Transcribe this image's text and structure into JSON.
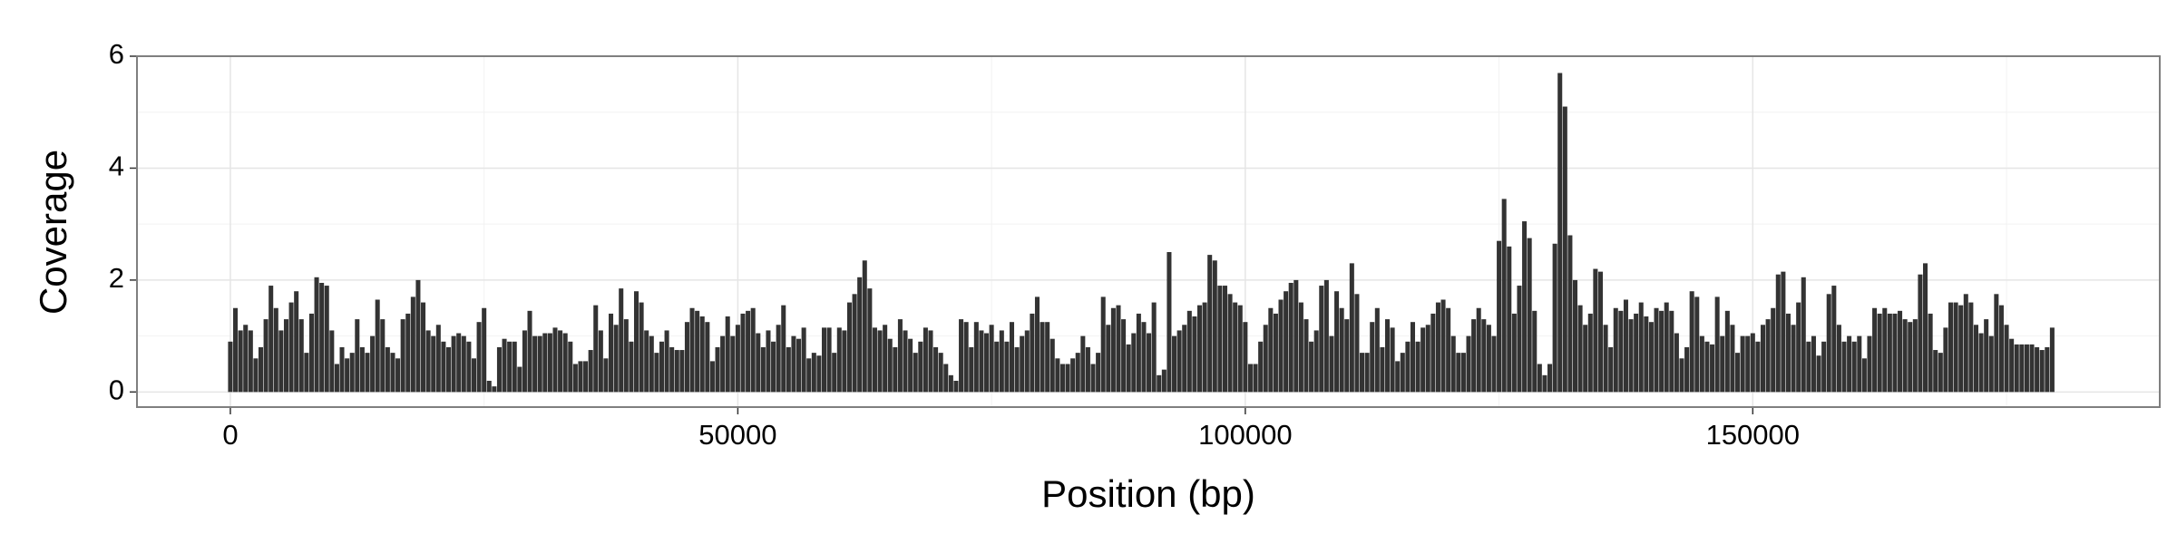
{
  "chart_data": {
    "type": "bar",
    "xlabel": "Position (bp)",
    "ylabel": "Coverage",
    "color": "#333333",
    "grid": true,
    "xlim": [
      -9200,
      190100
    ],
    "ylim": [
      -0.27,
      6.0
    ],
    "xticks": [
      0,
      50000,
      100000,
      150000
    ],
    "yticks": [
      0,
      2,
      4,
      6
    ],
    "x_minor_ticks": [
      25000,
      75000,
      125000,
      175000
    ],
    "y_minor_ticks": [
      1,
      3,
      5
    ],
    "x": [
      0,
      500,
      1000,
      1500,
      2000,
      2500,
      3000,
      3500,
      4000,
      4500,
      5000,
      5500,
      6000,
      6500,
      7000,
      7500,
      8000,
      8500,
      9000,
      9500,
      10000,
      10500,
      11000,
      11500,
      12000,
      12500,
      13000,
      13500,
      14000,
      14500,
      15000,
      15500,
      16000,
      16500,
      17000,
      17500,
      18000,
      18500,
      19000,
      19500,
      20000,
      20500,
      21000,
      21500,
      22000,
      22500,
      23000,
      23500,
      24000,
      24500,
      25000,
      25500,
      26000,
      26500,
      27000,
      27500,
      28000,
      28500,
      29000,
      29500,
      30000,
      30500,
      31000,
      31500,
      32000,
      32500,
      33000,
      33500,
      34000,
      34500,
      35000,
      35500,
      36000,
      36500,
      37000,
      37500,
      38000,
      38500,
      39000,
      39500,
      40000,
      40500,
      41000,
      41500,
      42000,
      42500,
      43000,
      43500,
      44000,
      44500,
      45000,
      45500,
      46000,
      46500,
      47000,
      47500,
      48000,
      48500,
      49000,
      49500,
      50000,
      50500,
      51000,
      51500,
      52000,
      52500,
      53000,
      53500,
      54000,
      54500,
      55000,
      55500,
      56000,
      56500,
      57000,
      57500,
      58000,
      58500,
      59000,
      59500,
      60000,
      60500,
      61000,
      61500,
      62000,
      62500,
      63000,
      63500,
      64000,
      64500,
      65000,
      65500,
      66000,
      66500,
      67000,
      67500,
      68000,
      68500,
      69000,
      69500,
      70000,
      70500,
      71000,
      71500,
      72000,
      72500,
      73000,
      73500,
      74000,
      74500,
      75000,
      75500,
      76000,
      76500,
      77000,
      77500,
      78000,
      78500,
      79000,
      79500,
      80000,
      80500,
      81000,
      81500,
      82000,
      82500,
      83000,
      83500,
      84000,
      84500,
      85000,
      85500,
      86000,
      86500,
      87000,
      87500,
      88000,
      88500,
      89000,
      89500,
      90000,
      90500,
      91000,
      91500,
      92000,
      92500,
      93000,
      93500,
      94000,
      94500,
      95000,
      95500,
      96000,
      96500,
      97000,
      97500,
      98000,
      98500,
      99000,
      99500,
      100000,
      100500,
      101000,
      101500,
      102000,
      102500,
      103000,
      103500,
      104000,
      104500,
      105000,
      105500,
      106000,
      106500,
      107000,
      107500,
      108000,
      108500,
      109000,
      109500,
      110000,
      110500,
      111000,
      111500,
      112000,
      112500,
      113000,
      113500,
      114000,
      114500,
      115000,
      115500,
      116000,
      116500,
      117000,
      117500,
      118000,
      118500,
      119000,
      119500,
      120000,
      120500,
      121000,
      121500,
      122000,
      122500,
      123000,
      123500,
      124000,
      124500,
      125000,
      125500,
      126000,
      126500,
      127000,
      127500,
      128000,
      128500,
      129000,
      129500,
      130000,
      130500,
      131000,
      131500,
      132000,
      132500,
      133000,
      133500,
      134000,
      134500,
      135000,
      135500,
      136000,
      136500,
      137000,
      137500,
      138000,
      138500,
      139000,
      139500,
      140000,
      140500,
      141000,
      141500,
      142000,
      142500,
      143000,
      143500,
      144000,
      144500,
      145000,
      145500,
      146000,
      146500,
      147000,
      147500,
      148000,
      148500,
      149000,
      149500,
      150000,
      150500,
      151000,
      151500,
      152000,
      152500,
      153000,
      153500,
      154000,
      154500,
      155000,
      155500,
      156000,
      156500,
      157000,
      157500,
      158000,
      158500,
      159000,
      159500,
      160000,
      160500,
      161000,
      161500,
      162000,
      162500,
      163000,
      163500,
      164000,
      164500,
      165000,
      165500,
      166000,
      166500,
      167000,
      167500,
      168000,
      168500,
      169000,
      169500,
      170000,
      170500,
      171000,
      171500,
      172000,
      172500,
      173000,
      173500,
      174000,
      174500,
      175000,
      175500,
      176000,
      176500,
      177000,
      177500,
      178000,
      178500,
      179000,
      179500
    ],
    "values": [
      0.9,
      1.5,
      1.1,
      1.2,
      1.1,
      0.6,
      0.8,
      1.3,
      1.9,
      1.5,
      1.1,
      1.3,
      1.6,
      1.8,
      1.3,
      0.7,
      1.4,
      2.05,
      1.95,
      1.9,
      1.1,
      0.5,
      0.8,
      0.6,
      0.7,
      1.3,
      0.8,
      0.7,
      1.0,
      1.65,
      1.3,
      0.8,
      0.7,
      0.6,
      1.3,
      1.4,
      1.7,
      2.0,
      1.6,
      1.1,
      1.0,
      1.2,
      0.9,
      0.8,
      1.0,
      1.05,
      1.0,
      0.9,
      0.6,
      1.25,
      1.5,
      0.2,
      0.1,
      0.8,
      0.95,
      0.9,
      0.9,
      0.45,
      1.1,
      1.45,
      1.0,
      1.0,
      1.05,
      1.05,
      1.15,
      1.1,
      1.05,
      0.9,
      0.5,
      0.55,
      0.55,
      0.75,
      1.55,
      1.1,
      0.6,
      1.4,
      1.2,
      1.85,
      1.3,
      0.9,
      1.8,
      1.6,
      1.1,
      1.0,
      0.7,
      0.9,
      1.1,
      0.8,
      0.75,
      0.75,
      1.25,
      1.5,
      1.45,
      1.35,
      1.25,
      0.55,
      0.8,
      1.0,
      1.35,
      1.0,
      1.2,
      1.4,
      1.45,
      1.5,
      1.05,
      0.8,
      1.1,
      0.9,
      1.2,
      1.55,
      0.8,
      1.0,
      0.95,
      1.15,
      0.6,
      0.7,
      0.65,
      1.15,
      1.15,
      0.7,
      1.15,
      1.1,
      1.6,
      1.75,
      2.05,
      2.35,
      1.85,
      1.15,
      1.1,
      1.2,
      0.95,
      0.8,
      1.3,
      1.1,
      0.95,
      0.7,
      0.9,
      1.15,
      1.1,
      0.8,
      0.7,
      0.5,
      0.3,
      0.2,
      1.3,
      1.25,
      0.8,
      1.25,
      1.1,
      1.05,
      1.2,
      0.9,
      1.1,
      0.9,
      1.25,
      0.8,
      1.0,
      1.1,
      1.4,
      1.7,
      1.25,
      1.25,
      0.95,
      0.6,
      0.5,
      0.5,
      0.6,
      0.7,
      1.0,
      0.8,
      0.5,
      0.7,
      1.7,
      1.2,
      1.5,
      1.55,
      1.3,
      0.85,
      1.05,
      1.4,
      1.25,
      1.05,
      1.6,
      0.3,
      0.4,
      2.5,
      1.0,
      1.1,
      1.2,
      1.45,
      1.35,
      1.55,
      1.6,
      2.45,
      2.35,
      1.9,
      1.9,
      1.75,
      1.6,
      1.55,
      1.25,
      0.5,
      0.5,
      0.9,
      1.2,
      1.5,
      1.4,
      1.65,
      1.8,
      1.95,
      2.0,
      1.6,
      1.3,
      0.9,
      1.1,
      1.9,
      2.0,
      1.0,
      1.8,
      1.5,
      1.3,
      2.3,
      1.75,
      0.7,
      0.7,
      1.25,
      1.5,
      0.8,
      1.3,
      1.15,
      0.55,
      0.7,
      0.9,
      1.25,
      0.9,
      1.15,
      1.2,
      1.4,
      1.6,
      1.65,
      1.5,
      1.0,
      0.7,
      0.7,
      1.0,
      1.3,
      1.5,
      1.3,
      1.2,
      1.0,
      2.7,
      3.45,
      2.6,
      1.4,
      1.9,
      3.05,
      2.75,
      1.45,
      0.5,
      0.3,
      0.5,
      2.65,
      5.7,
      5.1,
      2.8,
      2.0,
      1.55,
      1.2,
      1.4,
      2.2,
      2.15,
      1.2,
      0.8,
      1.5,
      1.45,
      1.65,
      1.3,
      1.4,
      1.6,
      1.35,
      1.25,
      1.5,
      1.45,
      1.6,
      1.45,
      1.05,
      0.6,
      0.8,
      1.8,
      1.7,
      1.0,
      0.9,
      0.85,
      1.7,
      1.0,
      1.45,
      1.2,
      0.7,
      1.0,
      1.0,
      1.05,
      0.9,
      1.2,
      1.3,
      1.5,
      2.1,
      2.15,
      1.4,
      1.2,
      1.6,
      2.05,
      0.9,
      1.0,
      0.65,
      0.9,
      1.75,
      1.9,
      1.2,
      0.9,
      1.0,
      0.9,
      1.0,
      0.6,
      1.0,
      1.5,
      1.4,
      1.5,
      1.4,
      1.4,
      1.45,
      1.3,
      1.25,
      1.3,
      2.1,
      2.3,
      1.4,
      0.75,
      0.7,
      1.15,
      1.6,
      1.6,
      1.55,
      1.75,
      1.6,
      1.2,
      1.05,
      1.3,
      1.0,
      1.75,
      1.55,
      1.2,
      0.95,
      0.85,
      0.85,
      0.85,
      0.85,
      0.8,
      0.75,
      0.8,
      1.15
    ]
  }
}
